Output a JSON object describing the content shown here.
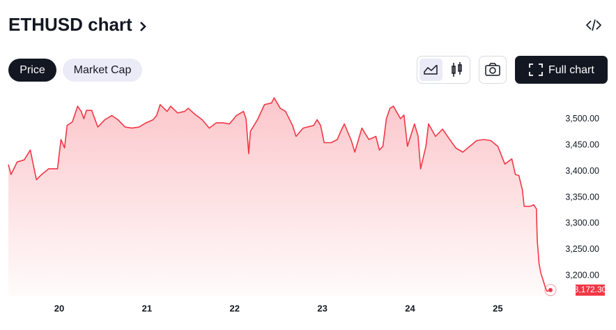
{
  "header": {
    "title": "ETHUSD chart"
  },
  "controls": {
    "price": "Price",
    "market_cap": "Market Cap",
    "full_chart": "Full chart"
  },
  "chart_data": {
    "type": "line",
    "color": "#f23645",
    "grid": false,
    "xlim": [
      19.42,
      25.68
    ],
    "xticks": [
      20,
      21,
      22,
      23,
      24,
      25
    ],
    "ylim": [
      3160,
      3548
    ],
    "yticks": [
      {
        "value": 3200,
        "label": "3,200.00"
      },
      {
        "value": 3250,
        "label": "3,250.00"
      },
      {
        "value": 3300,
        "label": "3,300.00"
      },
      {
        "value": 3350,
        "label": "3,350.00"
      },
      {
        "value": 3400,
        "label": "3,400.00"
      },
      {
        "value": 3450,
        "label": "3,450.00"
      },
      {
        "value": 3500,
        "label": "3,500.00"
      }
    ],
    "x": [
      19.42,
      19.45,
      19.52,
      19.6,
      19.67,
      19.71,
      19.74,
      19.8,
      19.88,
      19.98,
      20.02,
      20.06,
      20.09,
      20.15,
      20.21,
      20.25,
      20.28,
      20.31,
      20.37,
      20.44,
      20.52,
      20.6,
      20.67,
      20.75,
      20.83,
      20.91,
      20.99,
      21.07,
      21.11,
      21.15,
      21.23,
      21.27,
      21.35,
      21.43,
      21.47,
      21.55,
      21.63,
      21.71,
      21.79,
      21.87,
      21.94,
      22.02,
      22.1,
      22.13,
      22.16,
      22.18,
      22.26,
      22.34,
      22.42,
      22.45,
      22.52,
      22.58,
      22.66,
      22.7,
      22.78,
      22.9,
      22.94,
      22.98,
      23.02,
      23.1,
      23.17,
      23.21,
      23.25,
      23.33,
      23.37,
      23.45,
      23.53,
      23.61,
      23.65,
      23.69,
      23.73,
      23.77,
      23.81,
      23.89,
      23.93,
      23.97,
      24.05,
      24.09,
      24.12,
      24.18,
      24.21,
      24.29,
      24.37,
      24.44,
      24.52,
      24.6,
      24.68,
      24.76,
      24.84,
      24.92,
      25.0,
      25.08,
      25.16,
      25.2,
      25.24,
      25.28,
      25.3,
      25.37,
      25.41,
      25.44,
      25.45,
      25.47,
      25.49,
      25.52,
      25.54,
      25.56,
      25.6
    ],
    "values": [
      3413,
      3394,
      3418,
      3422,
      3441,
      3408,
      3384,
      3394,
      3405,
      3405,
      3461,
      3445,
      3488,
      3495,
      3525,
      3515,
      3501,
      3517,
      3517,
      3485,
      3499,
      3507,
      3499,
      3485,
      3483,
      3485,
      3493,
      3499,
      3507,
      3528,
      3515,
      3525,
      3512,
      3515,
      3521,
      3509,
      3499,
      3483,
      3493,
      3493,
      3491,
      3507,
      3515,
      3501,
      3434,
      3477,
      3499,
      3528,
      3531,
      3541,
      3521,
      3515,
      3488,
      3467,
      3483,
      3488,
      3499,
      3488,
      3455,
      3455,
      3461,
      3477,
      3491,
      3459,
      3437,
      3483,
      3461,
      3467,
      3441,
      3448,
      3501,
      3521,
      3525,
      3501,
      3508,
      3448,
      3491,
      3468,
      3405,
      3448,
      3491,
      3467,
      3481,
      3464,
      3445,
      3437,
      3448,
      3459,
      3461,
      3459,
      3448,
      3414,
      3424,
      3394,
      3392,
      3365,
      3333,
      3333,
      3336,
      3328,
      3267,
      3223,
      3205,
      3189,
      3178,
      3170,
      3172.3
    ],
    "value_labels": [
      null,
      null,
      null,
      null,
      null,
      null,
      null,
      null,
      null,
      null,
      null,
      null,
      null,
      null,
      null,
      null,
      null,
      null,
      null,
      null,
      null,
      null,
      null,
      null,
      null,
      null,
      null,
      null,
      null,
      null,
      null,
      null,
      null,
      null,
      null,
      null,
      null,
      null,
      null,
      null,
      null,
      null,
      null,
      null,
      null,
      null,
      null,
      null,
      null,
      null,
      null,
      null,
      null,
      null,
      null,
      null,
      null,
      null,
      null,
      null,
      null,
      null,
      null,
      null,
      null,
      null,
      null,
      null,
      null,
      null,
      null,
      null,
      null,
      null,
      null,
      null,
      null,
      null,
      null,
      null,
      null,
      null,
      null,
      null,
      null,
      null,
      null,
      null,
      null,
      null,
      null,
      null,
      null,
      null,
      null,
      null,
      null,
      null,
      null,
      null,
      null,
      null,
      null,
      null,
      null,
      null,
      "3,172.30"
    ]
  }
}
